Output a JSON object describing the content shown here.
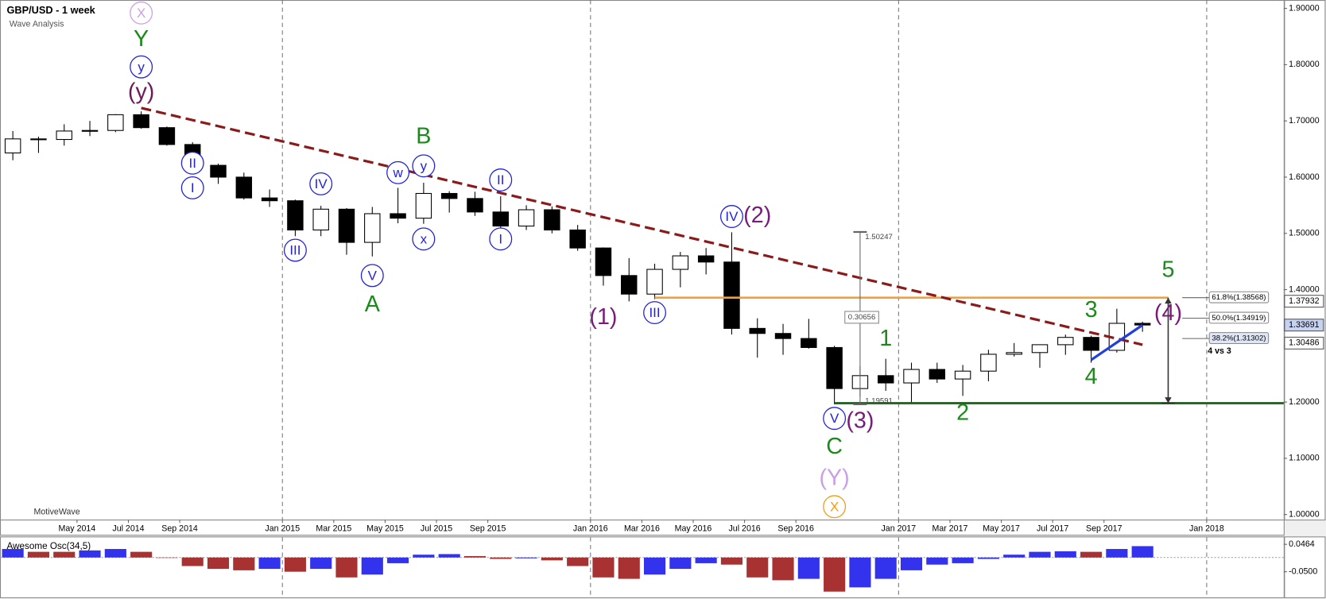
{
  "title": "GBP/USD - 1 week",
  "subtitle": "Wave Analysis",
  "watermark": "MotiveWave",
  "chart_data": [
    {
      "type": "candlestick",
      "x": [
        "2014-02",
        "2014-03",
        "2014-04",
        "2014-05",
        "2014-06",
        "2014-07",
        "2014-08",
        "2014-09",
        "2014-10",
        "2014-11",
        "2014-12",
        "2015-01",
        "2015-02",
        "2015-03",
        "2015-04",
        "2015-05",
        "2015-06",
        "2015-07",
        "2015-08",
        "2015-09",
        "2015-10",
        "2015-11",
        "2015-12",
        "2016-01",
        "2016-02",
        "2016-03",
        "2016-04",
        "2016-05",
        "2016-06",
        "2016-07",
        "2016-08",
        "2016-09",
        "2016-10",
        "2016-11",
        "2016-12",
        "2017-01",
        "2017-02",
        "2017-03",
        "2017-04",
        "2017-05",
        "2017-06",
        "2017-07",
        "2017-08",
        "2017-09",
        "2017-10"
      ],
      "open": [
        1.643,
        1.668,
        1.667,
        1.682,
        1.683,
        1.711,
        1.688,
        1.658,
        1.621,
        1.6,
        1.563,
        1.558,
        1.506,
        1.543,
        1.484,
        1.535,
        1.527,
        1.571,
        1.562,
        1.538,
        1.513,
        1.542,
        1.506,
        1.474,
        1.425,
        1.392,
        1.436,
        1.46,
        1.449,
        1.331,
        1.322,
        1.313,
        1.297,
        1.224,
        1.247,
        1.234,
        1.258,
        1.241,
        1.255,
        1.285,
        1.288,
        1.302,
        1.315,
        1.292,
        1.34
      ],
      "high": [
        1.682,
        1.672,
        1.694,
        1.7,
        1.712,
        1.717,
        1.69,
        1.662,
        1.624,
        1.608,
        1.578,
        1.56,
        1.549,
        1.545,
        1.547,
        1.581,
        1.59,
        1.575,
        1.574,
        1.566,
        1.55,
        1.548,
        1.515,
        1.475,
        1.456,
        1.446,
        1.467,
        1.474,
        1.502,
        1.349,
        1.339,
        1.348,
        1.3,
        1.264,
        1.277,
        1.27,
        1.27,
        1.266,
        1.293,
        1.305,
        1.299,
        1.32,
        1.318,
        1.366,
        1.343
      ],
      "low": [
        1.63,
        1.643,
        1.656,
        1.673,
        1.68,
        1.686,
        1.656,
        1.605,
        1.588,
        1.56,
        1.547,
        1.495,
        1.495,
        1.462,
        1.459,
        1.518,
        1.517,
        1.537,
        1.531,
        1.51,
        1.506,
        1.5,
        1.469,
        1.407,
        1.379,
        1.383,
        1.404,
        1.427,
        1.32,
        1.279,
        1.284,
        1.295,
        1.196,
        1.21,
        1.22,
        1.198,
        1.234,
        1.211,
        1.237,
        1.281,
        1.261,
        1.284,
        1.27,
        1.288,
        1.325
      ],
      "close": [
        1.668,
        1.667,
        1.682,
        1.683,
        1.711,
        1.688,
        1.658,
        1.621,
        1.6,
        1.563,
        1.558,
        1.506,
        1.543,
        1.484,
        1.535,
        1.527,
        1.571,
        1.562,
        1.538,
        1.513,
        1.542,
        1.506,
        1.474,
        1.425,
        1.392,
        1.436,
        1.46,
        1.449,
        1.331,
        1.322,
        1.313,
        1.297,
        1.224,
        1.247,
        1.234,
        1.258,
        1.241,
        1.255,
        1.285,
        1.288,
        1.302,
        1.315,
        1.292,
        1.34,
        1.337
      ],
      "up_color": "#ffffff",
      "down_color": "#000000",
      "xlim": [
        "2014-02",
        "2018-04"
      ],
      "xticks": [
        {
          "value": "2014-05",
          "label": "May 2014"
        },
        {
          "value": "2014-07",
          "label": "Jul 2014"
        },
        {
          "value": "2014-09",
          "label": "Sep 2014"
        },
        {
          "value": "2015-01",
          "label": "Jan 2015"
        },
        {
          "value": "2015-03",
          "label": "Mar 2015"
        },
        {
          "value": "2015-05",
          "label": "May 2015"
        },
        {
          "value": "2015-07",
          "label": "Jul 2015"
        },
        {
          "value": "2015-09",
          "label": "Sep 2015"
        },
        {
          "value": "2016-01",
          "label": "Jan 2016"
        },
        {
          "value": "2016-03",
          "label": "Mar 2016"
        },
        {
          "value": "2016-05",
          "label": "May 2016"
        },
        {
          "value": "2016-07",
          "label": "Jul 2016"
        },
        {
          "value": "2016-09",
          "label": "Sep 2016"
        },
        {
          "value": "2017-01",
          "label": "Jan 2017"
        },
        {
          "value": "2017-03",
          "label": "Mar 2017"
        },
        {
          "value": "2017-05",
          "label": "May 2017"
        },
        {
          "value": "2017-07",
          "label": "Jul 2017"
        },
        {
          "value": "2017-09",
          "label": "Sep 2017"
        },
        {
          "value": "2018-01",
          "label": "Jan 2018"
        }
      ],
      "xgrid": [
        "2015-01",
        "2016-01",
        "2017-01",
        "2018-01"
      ],
      "ylim": [
        0.991,
        1.915
      ],
      "yticks": [
        {
          "value": 1.9,
          "label": "1.90000"
        },
        {
          "value": 1.8,
          "label": "1.80000"
        },
        {
          "value": 1.7,
          "label": "1.70000"
        },
        {
          "value": 1.6,
          "label": "1.60000"
        },
        {
          "value": 1.5,
          "label": "1.50000"
        },
        {
          "value": 1.4,
          "label": "1.40000"
        },
        {
          "value": 1.3,
          "label": "1.30000"
        },
        {
          "value": 1.2,
          "label": "1.20000"
        },
        {
          "value": 1.1,
          "label": "1.10000"
        },
        {
          "value": 1.0,
          "label": "1.00000"
        }
      ],
      "lines": [
        {
          "x": [
            "2014-07",
            "2017-10"
          ],
          "y": [
            1.723,
            1.302
          ],
          "color": "#8b1a1a",
          "dash": true
        },
        {
          "x": [
            "2017-08",
            "2017-10"
          ],
          "y": [
            1.275,
            1.337
          ],
          "color": "#1f3fe0",
          "dash": false
        }
      ],
      "hlines": [
        {
          "value": 1.3857,
          "from": "2016-03",
          "to": "2017-11",
          "color": "#f7a030"
        },
        {
          "value": 1.198,
          "from": "2016-10",
          "to": "2018-04",
          "color": "#1f5a1f"
        }
      ],
      "fib_levels": [
        {
          "label": "61.8%(1.38568)",
          "value": 1.38568
        },
        {
          "label": "50.0%(1.34919)",
          "value": 1.34919
        },
        {
          "label": "38.2%(1.31302)",
          "value": 1.31302
        }
      ],
      "price_labels": [
        {
          "value": 1.37932,
          "color": "#ffffff"
        },
        {
          "value": 1.33691,
          "color": "#c6d2f2"
        },
        {
          "value": 1.30486,
          "color": "#ffffff"
        }
      ],
      "measure": {
        "x": "2016-11",
        "high": 1.50247,
        "low": 1.19591,
        "range": 0.30656
      },
      "arrow": {
        "x": "2017-11",
        "from": 1.3857,
        "to": 1.198
      },
      "annotations": [
        {
          "text": "X",
          "x": "2014-07",
          "y": 1.892,
          "color": "#c9a0e8",
          "circle": true
        },
        {
          "text": "Y",
          "x": "2014-07",
          "y": 1.844,
          "color": "#1a8a1a",
          "circle": false
        },
        {
          "text": "y",
          "x": "2014-07",
          "y": 1.796,
          "color": "#2222dd",
          "circle": true
        },
        {
          "text": "(y)",
          "x": "2014-07",
          "y": 1.75,
          "color": "#6b1a5a",
          "circle": false
        },
        {
          "text": "II",
          "x": "2014-09",
          "y": 1.625,
          "color": "#2222dd",
          "circle": true
        },
        {
          "text": "I",
          "x": "2014-09",
          "y": 1.581,
          "color": "#2222dd",
          "circle": true
        },
        {
          "text": "III",
          "x": "2015-01",
          "y": 1.47,
          "color": "#2222dd",
          "circle": true
        },
        {
          "text": "IV",
          "x": "2015-02",
          "y": 1.588,
          "color": "#2222dd",
          "circle": true
        },
        {
          "text": "V",
          "x": "2015-04",
          "y": 1.425,
          "color": "#2222dd",
          "circle": true
        },
        {
          "text": "A",
          "x": "2015-04",
          "y": 1.372,
          "color": "#1a8a1a",
          "circle": false
        },
        {
          "text": "w",
          "x": "2015-05",
          "y": 1.608,
          "color": "#2222dd",
          "circle": true
        },
        {
          "text": "x",
          "x": "2015-06",
          "y": 1.49,
          "color": "#2222dd",
          "circle": true
        },
        {
          "text": "y",
          "x": "2015-06",
          "y": 1.62,
          "color": "#2222dd",
          "circle": true
        },
        {
          "text": "B",
          "x": "2015-06",
          "y": 1.671,
          "color": "#1a8a1a",
          "circle": false
        },
        {
          "text": "I",
          "x": "2015-09",
          "y": 1.49,
          "color": "#2222dd",
          "circle": true
        },
        {
          "text": "II",
          "x": "2015-09",
          "y": 1.595,
          "color": "#2222dd",
          "circle": true
        },
        {
          "text": "(1)",
          "x": "2016-01",
          "y": 1.349,
          "color": "#7a1a7a",
          "circle": false
        },
        {
          "text": "III",
          "x": "2016-03",
          "y": 1.359,
          "color": "#2222dd",
          "circle": true
        },
        {
          "text": "IV",
          "x": "2016-06",
          "y": 1.53,
          "color": "#2222dd",
          "circle": true
        },
        {
          "text": "(2)",
          "x": "2016-07",
          "y": 1.53,
          "color": "#7a1a7a",
          "circle": false
        },
        {
          "text": "V",
          "x": "2016-10",
          "y": 1.171,
          "color": "#2222dd",
          "circle": true
        },
        {
          "text": "(3)",
          "x": "2016-11",
          "y": 1.165,
          "color": "#7a1a7a",
          "circle": false
        },
        {
          "text": "C",
          "x": "2016-10",
          "y": 1.119,
          "color": "#1a8a1a",
          "circle": false
        },
        {
          "text": "(Y)",
          "x": "2016-10",
          "y": 1.063,
          "color": "#c9a0e8",
          "circle": false
        },
        {
          "text": "X",
          "x": "2016-10",
          "y": 1.014,
          "color": "#f39c12",
          "circle": true
        },
        {
          "text": "1",
          "x": "2016-12",
          "y": 1.311,
          "color": "#1a8a1a",
          "circle": false
        },
        {
          "text": "2",
          "x": "2017-03",
          "y": 1.179,
          "color": "#1a8a1a",
          "circle": false
        },
        {
          "text": "3",
          "x": "2017-08",
          "y": 1.362,
          "color": "#1a8a1a",
          "circle": false
        },
        {
          "text": "4",
          "x": "2017-08",
          "y": 1.243,
          "color": "#1a8a1a",
          "circle": false
        },
        {
          "text": "5",
          "x": "2017-11",
          "y": 1.433,
          "color": "#1a8a1a",
          "circle": false
        },
        {
          "text": "(4)",
          "x": "2017-11",
          "y": 1.356,
          "color": "#7a1a7a",
          "circle": false
        },
        {
          "text": "4 vs 3",
          "x": "2018-01",
          "y": 1.29,
          "color": "#000000",
          "circle": false,
          "small": true
        }
      ]
    },
    {
      "type": "bar",
      "title": "Awesome Osc(34,5)",
      "values": [
        0.03,
        0.02,
        0.02,
        0.025,
        0.03,
        0.02,
        0,
        -0.03,
        -0.04,
        -0.045,
        -0.04,
        -0.05,
        -0.04,
        -0.07,
        -0.06,
        -0.02,
        0.01,
        0.012,
        0.005,
        -0.005,
        -0.003,
        -0.01,
        -0.03,
        -0.07,
        -0.075,
        -0.06,
        -0.04,
        -0.02,
        -0.025,
        -0.07,
        -0.08,
        -0.075,
        -0.12,
        -0.105,
        -0.075,
        -0.045,
        -0.025,
        -0.02,
        -0.005,
        0.01,
        0.02,
        0.022,
        0.02,
        0.03,
        0.04
      ],
      "up_color": "#3333ee",
      "down_color": "#a83232",
      "ylim": [
        -0.14,
        0.071
      ],
      "yticks": [
        {
          "value": 0.0464,
          "label": "0.0464"
        },
        {
          "value": -0.05,
          "label": "-0.0500"
        }
      ]
    }
  ]
}
